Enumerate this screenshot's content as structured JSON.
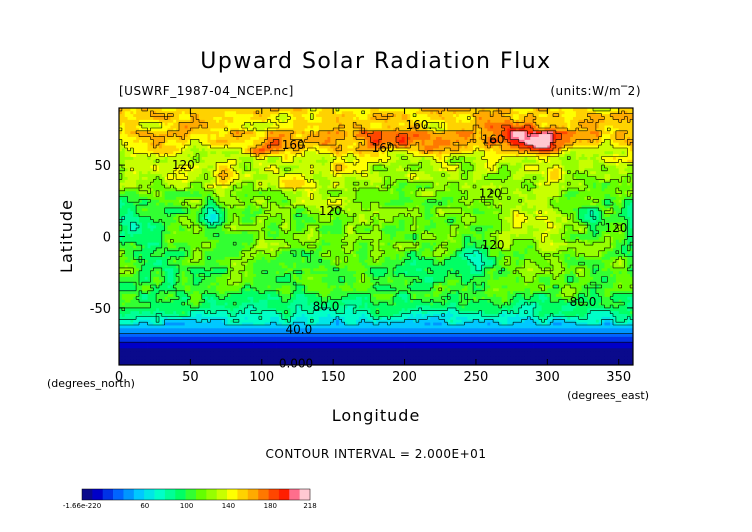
{
  "chart_data": {
    "type": "heatmap",
    "title": "Upward Solar Radiation Flux",
    "source_label": "[USWRF_1987-04_NCEP.nc]",
    "units_label": "(units:W/m^2)",
    "xlabel": "Longitude",
    "ylabel": "Latitude",
    "x_unit_label": "(degrees_east)",
    "y_unit_label": "(degrees_north)",
    "xlim": [
      0,
      360
    ],
    "ylim": [
      -90,
      90
    ],
    "x_ticks": [
      0,
      50,
      100,
      150,
      200,
      250,
      300,
      350
    ],
    "y_ticks": [
      -50,
      0,
      50
    ],
    "contour_interval_text": "CONTOUR INTERVAL = 2.000E+01",
    "contour_labels": [
      {
        "text": "160.",
        "x": 210,
        "y": 78
      },
      {
        "text": "160",
        "x": 122,
        "y": 64
      },
      {
        "text": "160",
        "x": 185,
        "y": 62
      },
      {
        "text": "160",
        "x": 262,
        "y": 68
      },
      {
        "text": "120",
        "x": 45,
        "y": 50
      },
      {
        "text": "120",
        "x": 148,
        "y": 18
      },
      {
        "text": "120",
        "x": 260,
        "y": 30
      },
      {
        "text": "120",
        "x": 262,
        "y": -6
      },
      {
        "text": "120",
        "x": 348,
        "y": 6
      },
      {
        "text": "80.0",
        "x": 145,
        "y": -49
      },
      {
        "text": "80.0",
        "x": 325,
        "y": -46
      },
      {
        "text": "40.0",
        "x": 126,
        "y": -65
      },
      {
        "text": "0.000",
        "x": 124,
        "y": -89
      }
    ],
    "colorbar": {
      "tick_labels": [
        "-1.66e-220",
        "60",
        "100",
        "140",
        "180",
        "218"
      ],
      "tick_values": [
        0,
        60,
        100,
        140,
        180,
        218
      ],
      "min": 0,
      "max": 218,
      "colors": [
        "#0a0a8c",
        "#0000c8",
        "#0032e6",
        "#0064ff",
        "#0096ff",
        "#00c8ff",
        "#00e6e6",
        "#00ffc8",
        "#00ff96",
        "#00ff64",
        "#32ff32",
        "#64ff00",
        "#96ff00",
        "#c8ff00",
        "#ffff00",
        "#ffd200",
        "#ffaa00",
        "#ff7800",
        "#ff4600",
        "#ff1e00",
        "#ff6e8c",
        "#ffc8d2"
      ]
    },
    "grid": false
  }
}
